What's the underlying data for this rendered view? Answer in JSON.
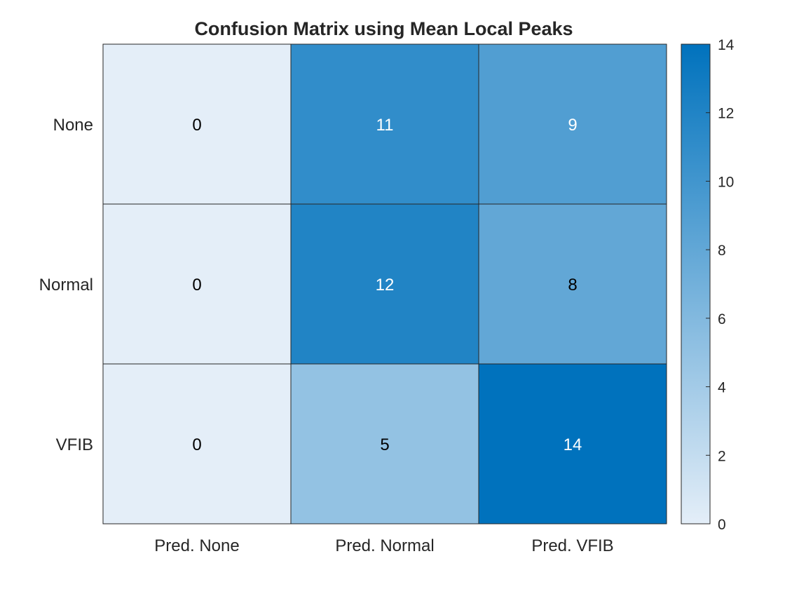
{
  "chart_data": {
    "type": "heatmap",
    "title": "Confusion Matrix using Mean Local Peaks",
    "x_categories": [
      "Pred. None",
      "Pred. Normal",
      "Pred. VFIB"
    ],
    "y_categories": [
      "None",
      "Normal",
      "VFIB"
    ],
    "values": [
      [
        0,
        11,
        9
      ],
      [
        0,
        12,
        8
      ],
      [
        0,
        5,
        14
      ]
    ],
    "colorbar": {
      "range": [
        0,
        14
      ],
      "ticks": [
        0,
        2,
        4,
        6,
        8,
        10,
        12,
        14
      ],
      "low_color": "#e4eef8",
      "high_color": "#0072bd"
    },
    "label_colors": {
      "dark": "#000000",
      "light": "#ffffff"
    }
  }
}
